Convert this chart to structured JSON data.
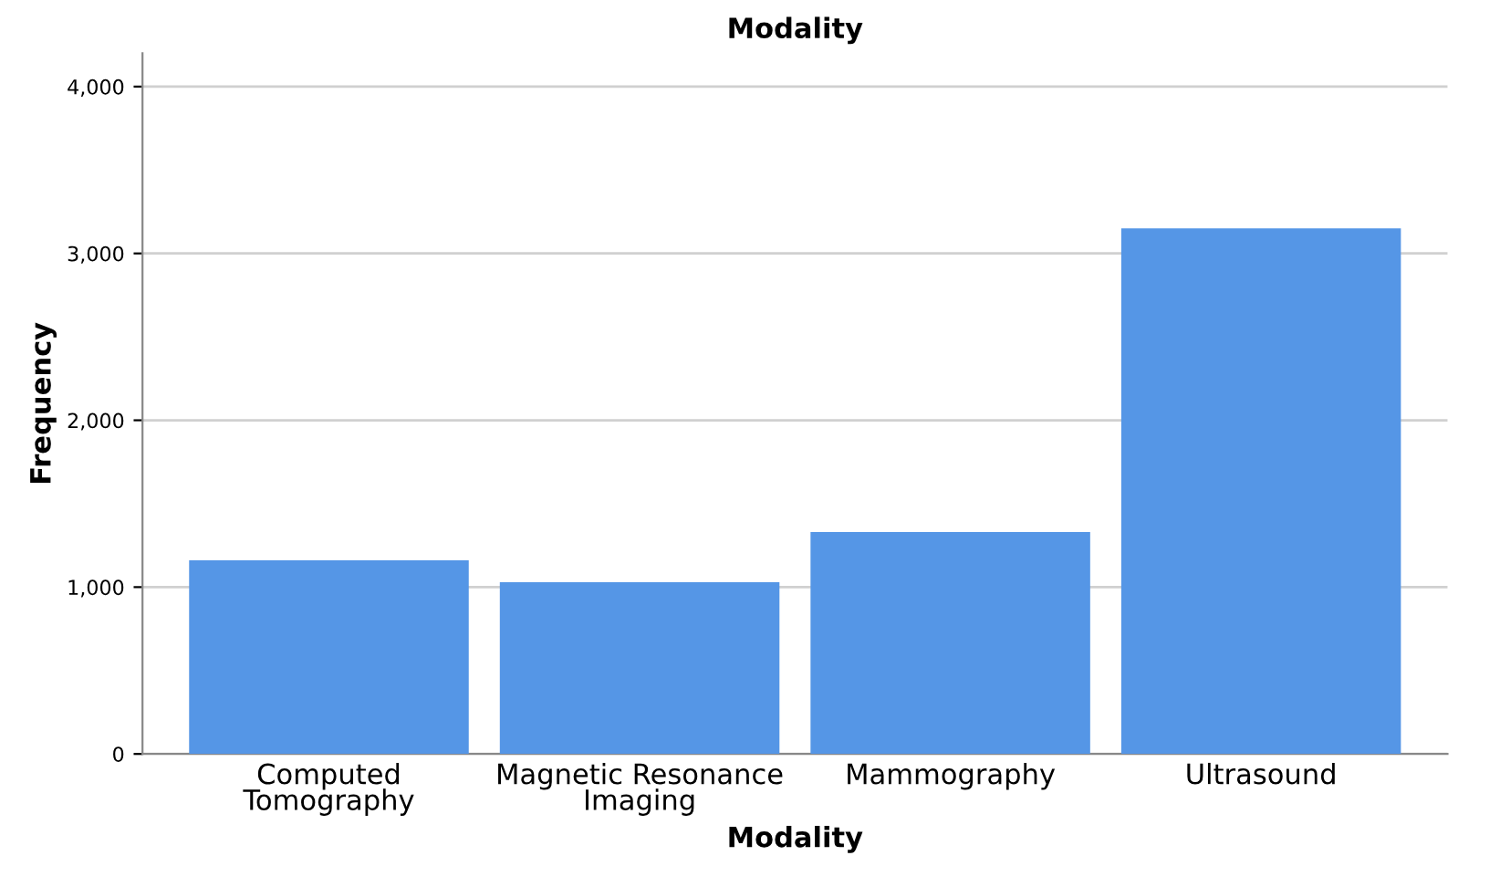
{
  "chart_data": {
    "type": "bar",
    "title": "Modality",
    "xlabel": "Modality",
    "ylabel": "Frequency",
    "categories": [
      "Computed\nTomography",
      "Magnetic Resonance\nImaging",
      "Mammography",
      "Ultrasound"
    ],
    "values": [
      1160,
      1030,
      1330,
      3150
    ],
    "color": "#5596e6",
    "ylim": [
      0,
      4200
    ],
    "yticks": [
      {
        "value": 0,
        "label": "0"
      },
      {
        "value": 1000,
        "label": "1,000"
      },
      {
        "value": 2000,
        "label": "2,000"
      },
      {
        "value": 3000,
        "label": "3,000"
      },
      {
        "value": 4000,
        "label": "4,000"
      }
    ],
    "grid": "y"
  }
}
